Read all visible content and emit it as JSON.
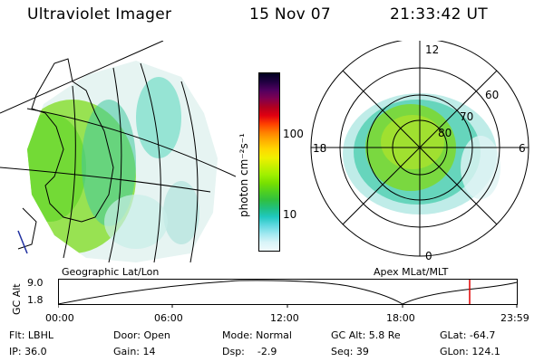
{
  "header": {
    "instrument": "Ultraviolet Imager",
    "date": "15 Nov 07",
    "time": "21:33:42 UT"
  },
  "colorbar": {
    "unit_label": "photon cm⁻²s⁻¹",
    "ticks": [
      "100",
      "10"
    ],
    "colors": [
      "#000020",
      "#200040",
      "#500060",
      "#800050",
      "#b00020",
      "#e00010",
      "#ff4000",
      "#ff8000",
      "#ffb000",
      "#ffd800",
      "#f0f000",
      "#c8f000",
      "#a0f000",
      "#78e000",
      "#50d020",
      "#30c040",
      "#20c080",
      "#20c8c0",
      "#60d8e0",
      "#a0e8f0",
      "#d8f4f8",
      "#f0fafc"
    ]
  },
  "geo_panel": {
    "label": "Geographic Lat/Lon"
  },
  "polar_panel": {
    "label": "Apex MLat/MLT",
    "mlt_labels": {
      "top": "12",
      "left": "18",
      "right": "6",
      "bottom": "0"
    },
    "lat_labels": [
      "60",
      "70",
      "80"
    ]
  },
  "altitude_plot": {
    "ylabel": "GC Alt",
    "yticks": [
      "9.0",
      "1.8"
    ],
    "xticks": [
      "00:00",
      "06:00",
      "12:00",
      "18:00",
      "23:59"
    ],
    "marker_color": "#e00000"
  },
  "status": {
    "row1": {
      "filter": "Flt: LBHL",
      "door": "Door: Open",
      "mode": "Mode: Normal",
      "gc_alt": "GC Alt: 5.8 Re",
      "glat": "GLat: -64.7"
    },
    "row2": {
      "ip": "IP: 36.0",
      "gain": "Gain: 14",
      "dsp": "Dsp:    -2.9",
      "seq": "Seq: 39",
      "glon": "GLon: 124.1"
    }
  }
}
